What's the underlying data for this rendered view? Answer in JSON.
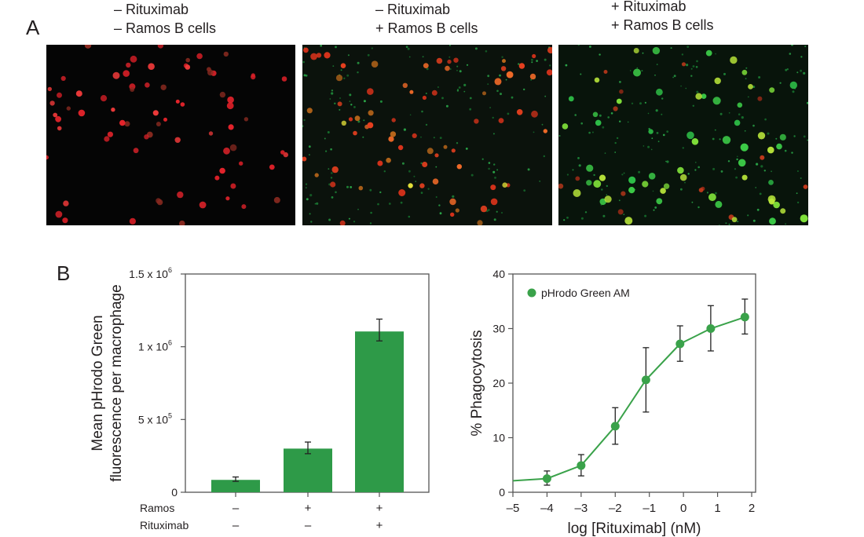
{
  "panel_a": {
    "letter": "A",
    "images": [
      {
        "line1": "– Rituximab",
        "line2": "– Ramos B cells",
        "description": "Macrophages only, red fluorescence"
      },
      {
        "line1": "– Rituximab",
        "line2": "+ Ramos B cells",
        "description": "Red macrophages with scattered small green B cells"
      },
      {
        "line1": "+ Rituximab",
        "line2": "+ Ramos B cells",
        "description": "Bright green/yellow phagocytosing macrophages"
      }
    ]
  },
  "panel_b": {
    "letter": "B"
  },
  "colors": {
    "bar_green": "#2e9a48",
    "line_green": "#3aa24a",
    "axis": "#555555",
    "text": "#231f20"
  },
  "chart_data": [
    {
      "type": "bar",
      "title": "",
      "xlabel": "",
      "ylabel": "Mean pHrodo Green fluorescence per macrophage",
      "ylabel_line1": "Mean pHrodo Green",
      "ylabel_line2": "fluorescence per macrophage",
      "ylim": [
        0,
        1500000
      ],
      "yticks": [
        {
          "value": 0,
          "label": "0"
        },
        {
          "value": 500000,
          "label": "5 x 10",
          "exp": "5"
        },
        {
          "value": 1000000,
          "label": "1 x 10",
          "exp": "6"
        },
        {
          "value": 1500000,
          "label": "1.5 x 10",
          "exp": "6"
        }
      ],
      "row_labels": [
        "Ramos",
        "Rituximab"
      ],
      "categories": [
        {
          "ramos": "–",
          "rituximab": "–"
        },
        {
          "ramos": "+",
          "rituximab": "–"
        },
        {
          "ramos": "+",
          "rituximab": "+"
        }
      ],
      "values": [
        85000,
        300000,
        1105000
      ],
      "errors": [
        [
          75000,
          105000
        ],
        [
          265000,
          345000
        ],
        [
          1040000,
          1190000
        ]
      ],
      "grid": false
    },
    {
      "type": "line",
      "title": "",
      "xlabel": "log [Rituximab] (nM)",
      "ylabel": "% Phagocytosis",
      "xlim": [
        -5,
        2
      ],
      "ylim": [
        0,
        40
      ],
      "xticks": [
        -5,
        -4,
        -3,
        -2,
        -1,
        0,
        1,
        2
      ],
      "xtick_labels": [
        "–5",
        "–4",
        "–3",
        "–2",
        "–1",
        "0",
        "1",
        "2"
      ],
      "yticks": [
        0,
        10,
        20,
        30,
        40
      ],
      "legend": {
        "position": "upper-left",
        "entries": [
          "pHrodo Green AM"
        ]
      },
      "series": [
        {
          "name": "pHrodo Green AM",
          "x": [
            -4,
            -3,
            -2,
            -1.1,
            -0.1,
            0.8,
            1.8
          ],
          "y": [
            2.5,
            4.9,
            12.1,
            20.6,
            27.2,
            30.0,
            32.1
          ],
          "err_low": [
            1.3,
            3.0,
            8.8,
            14.7,
            24.0,
            25.9,
            29.0
          ],
          "err_high": [
            3.9,
            6.9,
            15.5,
            26.5,
            30.5,
            34.2,
            35.4
          ],
          "fit_curve": [
            [
              -5,
              2.1
            ],
            [
              -4,
              2.5
            ],
            [
              -3,
              4.9
            ],
            [
              -2,
              12.1
            ],
            [
              -1.1,
              20.6
            ],
            [
              -0.1,
              27.2
            ],
            [
              0.8,
              30.0
            ],
            [
              1.8,
              32.1
            ]
          ]
        }
      ],
      "grid": false
    }
  ]
}
